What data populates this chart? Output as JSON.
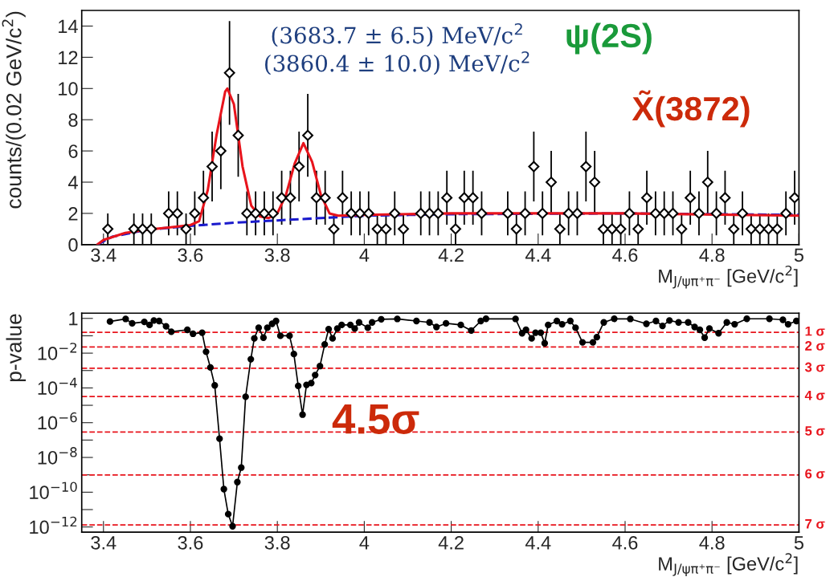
{
  "chart_data": [
    {
      "type": "scatter",
      "xlabel": "M$_{J/ψπ⁺π⁻}$ [GeV/c$^{2}$]",
      "ylabel": "counts/(0.02 GeV/c$^{2}$)",
      "xlim": [
        3.35,
        5.0
      ],
      "xticks": [
        3.4,
        3.6,
        3.8,
        4,
        4.2,
        4.4,
        4.6,
        4.8,
        5
      ],
      "ylim": [
        0,
        15
      ],
      "yticks": [
        0,
        2,
        4,
        6,
        8,
        10,
        12,
        14
      ],
      "grid": false,
      "legend": false,
      "annotations": [
        "(3683.7 ± 6.5) MeV/c$^{2}$",
        "(3860.4 ± 10.0) MeV/c$^{2}$",
        "ψ(2S)",
        "X̃(3872)"
      ],
      "series": [
        {
          "type": "scatter",
          "color": "#000000",
          "marker": "diamond",
          "x": [
            3.41,
            3.47,
            3.49,
            3.51,
            3.55,
            3.57,
            3.59,
            3.61,
            3.63,
            3.65,
            3.67,
            3.69,
            3.71,
            3.73,
            3.75,
            3.77,
            3.79,
            3.81,
            3.83,
            3.85,
            3.87,
            3.89,
            3.91,
            3.93,
            3.95,
            3.97,
            3.99,
            4.01,
            4.03,
            4.05,
            4.07,
            4.09,
            4.13,
            4.15,
            4.17,
            4.19,
            4.21,
            4.23,
            4.25,
            4.27,
            4.33,
            4.35,
            4.37,
            4.39,
            4.41,
            4.43,
            4.45,
            4.47,
            4.49,
            4.51,
            4.53,
            4.55,
            4.57,
            4.59,
            4.61,
            4.63,
            4.65,
            4.67,
            4.69,
            4.71,
            4.73,
            4.75,
            4.77,
            4.79,
            4.81,
            4.83,
            4.85,
            4.87,
            4.89,
            4.91,
            4.93,
            4.95,
            4.97,
            4.99
          ],
          "values": [
            1,
            1,
            1,
            1,
            2,
            2,
            1,
            2,
            3,
            5,
            6,
            11,
            7,
            2,
            2,
            2,
            2,
            3,
            3,
            5,
            7,
            3,
            3,
            1,
            3,
            2,
            2,
            2,
            1,
            1,
            2,
            1,
            2,
            2,
            2,
            3,
            1,
            3,
            3,
            2,
            2,
            1,
            2,
            5,
            2,
            4,
            1,
            2,
            2,
            5,
            4,
            1,
            1,
            1,
            2,
            1,
            3,
            2,
            2,
            2,
            1,
            3,
            2,
            4,
            2,
            3,
            1,
            2,
            1,
            1,
            1,
            1,
            2,
            3
          ],
          "errors": [
            1,
            1,
            1,
            1,
            1.41,
            1.41,
            1,
            1.41,
            1.73,
            2.24,
            2.45,
            3.32,
            2.65,
            1.41,
            1.41,
            1.41,
            1.41,
            1.73,
            1.73,
            2.24,
            2.65,
            1.73,
            1.73,
            1,
            1.73,
            1.41,
            1.41,
            1.41,
            1,
            1,
            1.41,
            1,
            1.41,
            1.41,
            1.41,
            1.73,
            1,
            1.73,
            1.73,
            1.41,
            1.41,
            1,
            1.41,
            2.24,
            1.41,
            2,
            1,
            1.41,
            1.41,
            2.24,
            2,
            1,
            1,
            1,
            1.41,
            1,
            1.73,
            1.41,
            1.41,
            1.41,
            1,
            1.73,
            1.41,
            2,
            1.41,
            1.73,
            1,
            1.41,
            1,
            1,
            1,
            1,
            1.41,
            1.73
          ]
        },
        {
          "type": "line",
          "color": "#1a1acc",
          "line_style": "dashed",
          "marker": "none",
          "x": [
            3.386,
            3.42,
            3.5,
            3.6,
            3.7,
            3.8,
            3.9,
            4.0,
            4.2,
            4.6,
            5.0
          ],
          "values": [
            0,
            0.5,
            0.95,
            1.2,
            1.4,
            1.55,
            1.7,
            1.85,
            1.95,
            2.0,
            1.9
          ]
        },
        {
          "type": "line",
          "color": "#e8141c",
          "line_style": "solid",
          "marker": "none",
          "x": [
            3.386,
            3.4,
            3.45,
            3.5,
            3.55,
            3.6,
            3.62,
            3.64,
            3.66,
            3.68,
            3.685,
            3.7,
            3.72,
            3.74,
            3.76,
            3.78,
            3.8,
            3.82,
            3.84,
            3.86,
            3.88,
            3.9,
            3.92,
            3.94,
            4.0,
            4.2,
            4.6,
            5.0
          ],
          "values": [
            0,
            0.3,
            0.75,
            0.95,
            1.1,
            1.25,
            1.5,
            3.5,
            7,
            9.8,
            10,
            9,
            5,
            2.5,
            1.8,
            1.7,
            2.0,
            3.2,
            5.2,
            6.5,
            5.3,
            3.2,
            2.0,
            1.85,
            1.9,
            2.0,
            2.0,
            1.85
          ]
        }
      ]
    },
    {
      "type": "line",
      "xlabel": "M$_{J/ψπ⁺π⁻}$ [GeV/c$^{2}$]",
      "ylabel": "p-value",
      "log": "y",
      "xlim": [
        3.35,
        5.0
      ],
      "xticks": [
        3.4,
        3.6,
        3.8,
        4,
        4.2,
        4.4,
        4.6,
        4.8,
        5
      ],
      "ylim": [
        5e-13,
        2
      ],
      "yticks": [
        1,
        {
          "value": 0.1,
          "label": null
        },
        {
          "value": 0.01,
          "label": "10$^{−2}$"
        },
        {
          "value": 0.001,
          "label": null
        },
        {
          "value": 0.0001,
          "label": "10$^{−4}$"
        },
        {
          "value": 1e-05,
          "label": null
        },
        {
          "value": 1e-06,
          "label": "10$^{−6}$"
        },
        {
          "value": 1e-07,
          "label": null
        },
        {
          "value": 1e-08,
          "label": "10$^{−8}$"
        },
        {
          "value": 1e-09,
          "label": null
        },
        {
          "value": 1e-10,
          "label": "10$^{−10}$"
        },
        {
          "value": 1e-11,
          "label": null
        },
        {
          "value": 1e-12,
          "label": "10$^{−12}$"
        }
      ],
      "grid": false,
      "legend": false,
      "marker": "circle",
      "line_style": "solid",
      "annotations": [
        "4.5σ"
      ],
      "ref_lines": [
        {
          "axis": "y",
          "value": 0.159,
          "label": "1 σ",
          "color": "#e8141c",
          "line_style": "dashed"
        },
        {
          "axis": "y",
          "value": 0.0228,
          "label": "2 σ",
          "color": "#e8141c",
          "line_style": "dashed"
        },
        {
          "axis": "y",
          "value": 0.00135,
          "label": "3 σ",
          "color": "#e8141c",
          "line_style": "dashed"
        },
        {
          "axis": "y",
          "value": 3.2e-05,
          "label": "4 σ",
          "color": "#e8141c",
          "line_style": "dashed"
        },
        {
          "axis": "y",
          "value": 2.9e-07,
          "label": "5 σ",
          "color": "#e8141c",
          "line_style": "dashed"
        },
        {
          "axis": "y",
          "value": 9.9e-10,
          "label": "6 σ",
          "color": "#e8141c",
          "line_style": "dashed"
        },
        {
          "axis": "y",
          "value": 1.3e-12,
          "label": "7 σ",
          "color": "#e8141c",
          "line_style": "dashed"
        }
      ],
      "series": [
        {
          "color": "#000000",
          "x": [
            3.415,
            3.451,
            3.466,
            3.494,
            3.506,
            3.516,
            3.528,
            3.544,
            3.556,
            3.593,
            3.606,
            3.627,
            3.636,
            3.646,
            3.656,
            3.667,
            3.677,
            3.687,
            3.697,
            3.708,
            3.717,
            3.727,
            3.739,
            3.747,
            3.757,
            3.768,
            3.777,
            3.788,
            3.797,
            3.807,
            3.828,
            3.838,
            3.848,
            3.858,
            3.867,
            3.878,
            3.887,
            3.898,
            3.909,
            3.918,
            3.927,
            3.938,
            3.948,
            3.968,
            3.978,
            3.988,
            4.008,
            4.018,
            4.039,
            4.076,
            4.12,
            4.15,
            4.166,
            4.188,
            4.222,
            4.246,
            4.268,
            4.28,
            4.348,
            4.363,
            4.372,
            4.385,
            4.394,
            4.406,
            4.415,
            4.423,
            4.443,
            4.455,
            4.474,
            4.486,
            4.502,
            4.526,
            4.535,
            4.551,
            4.575,
            4.612,
            4.649,
            4.671,
            4.686,
            4.702,
            4.723,
            4.745,
            4.76,
            4.772,
            4.783,
            4.794,
            4.815,
            4.834,
            4.852,
            4.88,
            4.932,
            4.963,
            4.975,
            4.994
          ],
          "values": [
            0.66,
            0.93,
            0.52,
            0.63,
            0.42,
            0.76,
            0.71,
            0.35,
            0.17,
            0.22,
            0.13,
            0.15,
            0.012,
            0.0015,
            0.00014,
            1.2e-07,
            1.5e-10,
            5.5e-12,
            1.1e-12,
            3.8e-10,
            2.6e-09,
            3.1e-05,
            0.0045,
            0.071,
            0.29,
            0.078,
            0.29,
            0.49,
            0.71,
            0.1,
            0.1,
            0.0089,
            0.00013,
            2.9e-06,
            0.00015,
            0.00019,
            0.00055,
            0.0018,
            0.032,
            0.24,
            0.071,
            0.26,
            0.42,
            0.42,
            0.26,
            0.59,
            0.29,
            0.59,
            0.89,
            0.93,
            0.71,
            0.59,
            0.32,
            0.52,
            0.42,
            0.2,
            0.71,
            0.95,
            0.93,
            0.14,
            0.22,
            0.071,
            0.15,
            0.15,
            0.037,
            0.42,
            0.71,
            0.46,
            0.71,
            0.29,
            0.042,
            0.042,
            0.083,
            0.59,
            0.95,
            0.93,
            0.49,
            0.71,
            0.37,
            0.76,
            0.59,
            0.59,
            0.32,
            0.22,
            0.078,
            0.26,
            0.14,
            0.59,
            0.46,
            0.95,
            0.95,
            0.83,
            0.46,
            0.71
          ]
        }
      ]
    }
  ]
}
